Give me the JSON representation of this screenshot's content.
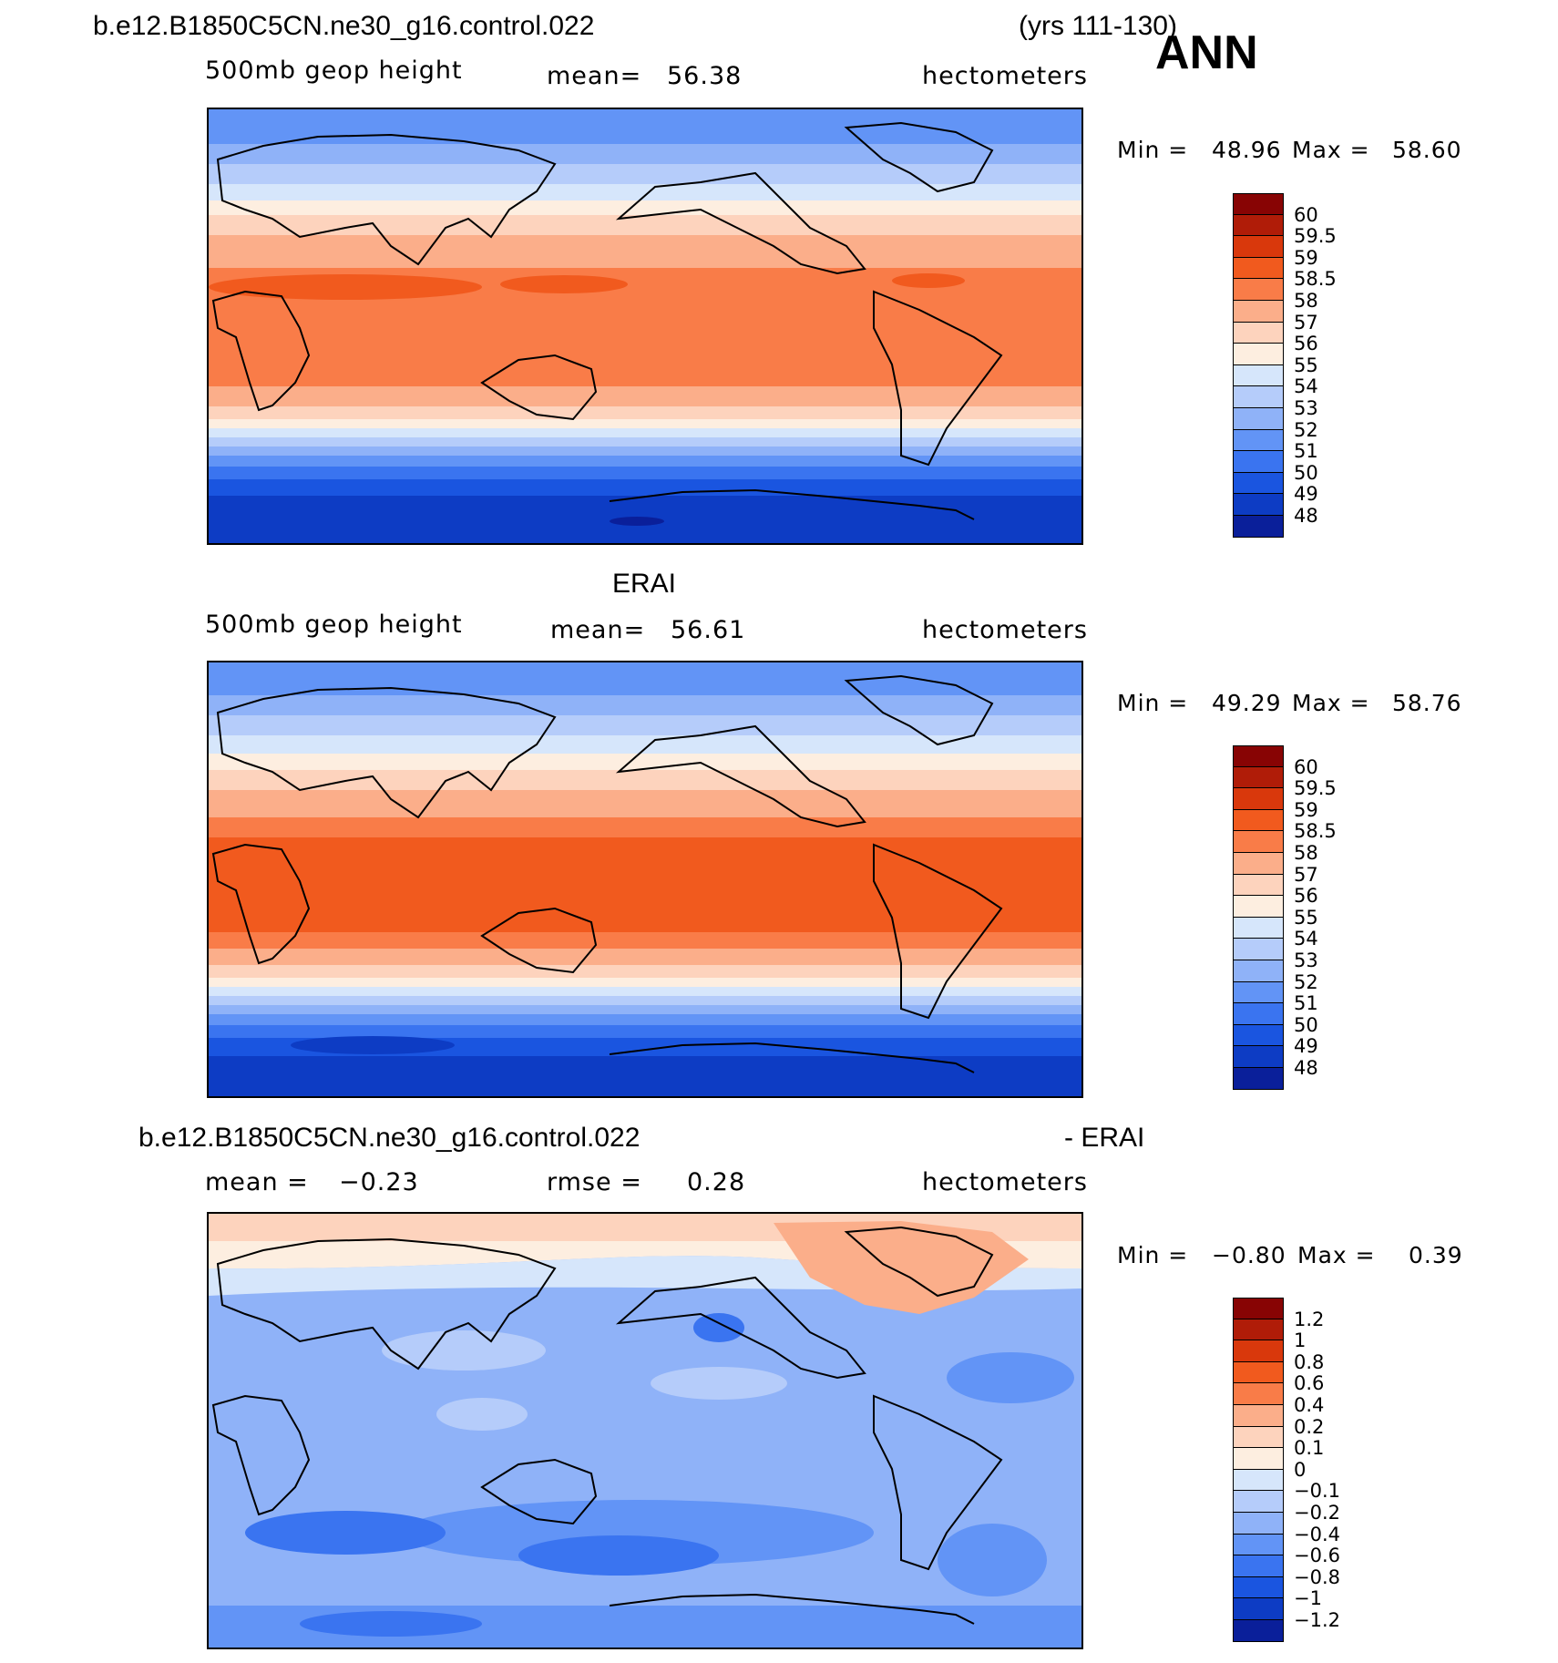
{
  "header": {
    "case_name": "b.e12.B1850C5CN.ne30_g16.control.022",
    "years": "(yrs 111-130)",
    "season": "ANN"
  },
  "colors": {
    "full_levels": [
      "#08087a",
      "#0a1f9a",
      "#0d3cc4",
      "#1a55e0",
      "#3a74f0",
      "#6294f6",
      "#8fb2f8",
      "#b5ccfa",
      "#d6e6fb",
      "#fdeee0",
      "#fdd3bd",
      "#fbae8a",
      "#f97c48",
      "#f15a1e",
      "#d9380c",
      "#b01c08",
      "#880404"
    ],
    "diff_levels": [
      "#08087a",
      "#0a1f9a",
      "#0d3cc4",
      "#1a55e0",
      "#3a74f0",
      "#6294f6",
      "#8fb2f8",
      "#b5ccfa",
      "#d6e6fb",
      "#fdeee0",
      "#fdd3bd",
      "#fbae8a",
      "#f97c48",
      "#f15a1e",
      "#d9380c",
      "#b01c08",
      "#880404"
    ]
  },
  "panels": [
    {
      "id": "model",
      "variable": "500mb geop height",
      "mean_label": "mean=",
      "mean_value": "56.38",
      "units": "hectometers",
      "min_label": "Min =",
      "min_value": "48.96",
      "max_label": "Max =",
      "max_value": "58.60",
      "colorbar_labels": [
        "60",
        "59.5",
        "59",
        "58.5",
        "58",
        "57",
        "56",
        "55",
        "54",
        "53",
        "52",
        "51",
        "50",
        "49",
        "48"
      ]
    },
    {
      "id": "obs",
      "title": "ERAI",
      "variable": "500mb geop height",
      "mean_label": "mean=",
      "mean_value": "56.61",
      "units": "hectometers",
      "min_label": "Min =",
      "min_value": "49.29",
      "max_label": "Max =",
      "max_value": "58.76",
      "colorbar_labels": [
        "60",
        "59.5",
        "59",
        "58.5",
        "58",
        "57",
        "56",
        "55",
        "54",
        "53",
        "52",
        "51",
        "50",
        "49",
        "48"
      ]
    },
    {
      "id": "diff",
      "title_left": "b.e12.B1850C5CN.ne30_g16.control.022",
      "title_right": "- ERAI",
      "mean_label": "mean =",
      "mean_value": "−0.23",
      "rmse_label": "rmse =",
      "rmse_value": "0.28",
      "units": "hectometers",
      "min_label": "Min =",
      "min_value": "−0.80",
      "max_label": "Max =",
      "max_value": "0.39",
      "colorbar_labels": [
        "1.2",
        "1",
        "0.8",
        "0.6",
        "0.4",
        "0.2",
        "0.1",
        "0",
        "−0.1",
        "−0.2",
        "−0.4",
        "−0.6",
        "−0.8",
        "−1",
        "−1.2"
      ]
    }
  ]
}
